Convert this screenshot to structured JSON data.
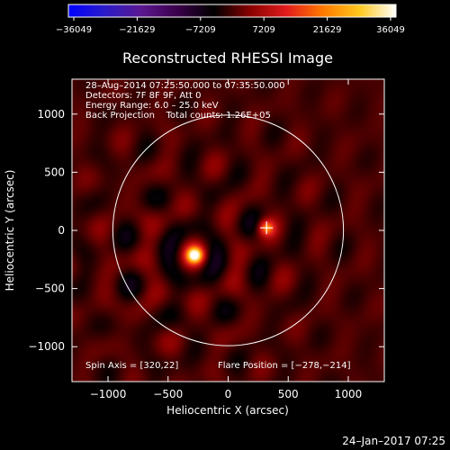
{
  "chart_data": {
    "type": "heatmap",
    "title": "Reconstructed RHESSI Image",
    "xlabel": "Heliocentric X (arcsec)",
    "ylabel": "Heliocentric Y (arcsec)",
    "xlim": [
      -1300,
      1300
    ],
    "ylim": [
      -1300,
      1300
    ],
    "xticks": [
      -1000,
      -500,
      0,
      500,
      1000
    ],
    "yticks": [
      -1000,
      -500,
      0,
      500,
      1000
    ],
    "xtick_labels": [
      "−1000",
      "−500",
      "0",
      "500",
      "1000"
    ],
    "ytick_labels": [
      "−1000",
      "−500",
      "0",
      "500",
      "1000"
    ],
    "colorbar": {
      "min": -36049,
      "max": 36049,
      "tick_labels": [
        "−36049",
        "−21629",
        "−7209",
        "7209",
        "21629",
        "36049"
      ],
      "colors": [
        "#0000ff",
        "#2a1bc8",
        "#5a1790",
        "#3a004a",
        "#000000",
        "#8a0000",
        "#e21c1c",
        "#ff7a00",
        "#ffc81e",
        "#ffffff"
      ]
    },
    "info_lines": [
      "28–Aug–2014 07:25:50.000 to 07:35:50.000",
      "Detectors: 7F 8F 9F, Att 0",
      "Energy Range: 6.0 – 25.0 keV",
      "Back Projection    Total counts: 1.26E+05"
    ],
    "spin_axis_label": "Spin Axis = [320,22]",
    "flare_position_label": "Flare Position = [−278,−214]",
    "solar_disk_radius": 960,
    "flare_position": [
      -278,
      -214
    ],
    "spin_axis": [
      320,
      22
    ],
    "sources": [
      {
        "x": -278,
        "y": -214,
        "peak": 36049
      },
      {
        "x": 320,
        "y": 22,
        "peak": 20000
      }
    ]
  },
  "footer": {
    "timestamp": "24–Jan–2017 07:25"
  }
}
